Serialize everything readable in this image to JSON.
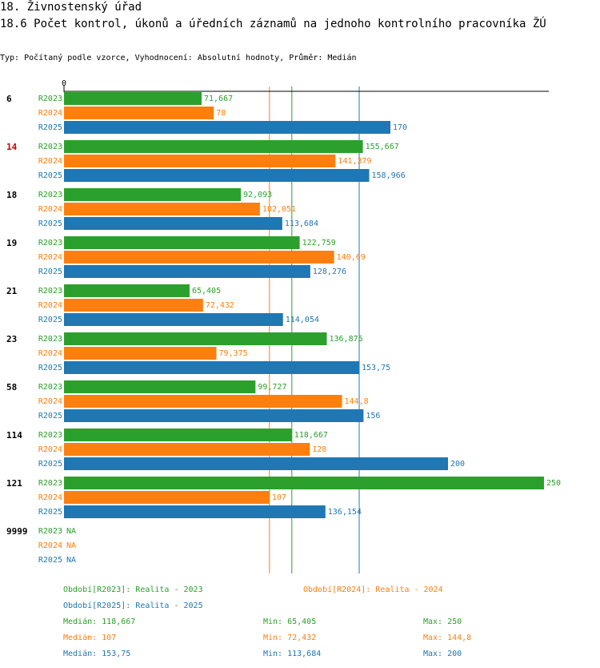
{
  "header": {
    "title": "18. Živnostenský úřad",
    "subtitle": "18.6 Počet kontrol, úkonů a úředních záznamů na jednoho kontrolního pracovníka ŽÚ",
    "meta": "Typ: Počítaný podle vzorce, Vyhodnocení: Absolutní hodnoty, Průměr: Medián"
  },
  "colors": {
    "R2023": "#2ca02c",
    "R2024": "#ff7f0e",
    "R2025": "#1f77b4",
    "highlight": "#cc0000"
  },
  "chart_data": {
    "type": "bar",
    "orientation": "horizontal",
    "axis_zero_label": "0",
    "xlim": [
      0,
      250
    ],
    "categories": [
      "6",
      "14",
      "18",
      "19",
      "21",
      "23",
      "58",
      "114",
      "121",
      "9999"
    ],
    "highlighted_category": "14",
    "series": [
      {
        "name": "R2023",
        "values": [
          71.667,
          155.667,
          92.093,
          122.759,
          65.405,
          136.875,
          99.727,
          118.667,
          250,
          null
        ],
        "labels": [
          "71,667",
          "155,667",
          "92,093",
          "122,759",
          "65,405",
          "136,875",
          "99,727",
          "118,667",
          "250",
          "NA"
        ]
      },
      {
        "name": "R2024",
        "values": [
          78,
          141.379,
          102.051,
          140.69,
          72.432,
          79.375,
          144.8,
          128,
          107,
          null
        ],
        "labels": [
          "78",
          "141,379",
          "102,051",
          "140,69",
          "72,432",
          "79,375",
          "144,8",
          "128",
          "107",
          "NA"
        ]
      },
      {
        "name": "R2025",
        "values": [
          170,
          158.966,
          113.684,
          128.276,
          114.054,
          153.75,
          156,
          200,
          136.154,
          null
        ],
        "labels": [
          "170",
          "158,966",
          "113,684",
          "128,276",
          "114,054",
          "153,75",
          "156",
          "200",
          "136,154",
          "NA"
        ]
      }
    ],
    "reference_lines": [
      {
        "series": "R2023",
        "statistic": "median",
        "value": 118.667
      },
      {
        "series": "R2024",
        "statistic": "median",
        "value": 107
      },
      {
        "series": "R2025",
        "statistic": "median",
        "value": 153.75
      }
    ]
  },
  "legend": {
    "periods": [
      {
        "series": "R2023",
        "text": "Období[R2023]: Realita - 2023"
      },
      {
        "series": "R2024",
        "text": "Období[R2024]: Realita - 2024"
      },
      {
        "series": "R2025",
        "text": "Období[R2025]: Realita - 2025"
      }
    ],
    "stats": [
      {
        "series": "R2023",
        "median": "Medián: 118,667",
        "min": "Min: 65,405",
        "max": "Max: 250"
      },
      {
        "series": "R2024",
        "median": "Medián: 107",
        "min": "Min: 72,432",
        "max": "Max: 144,8"
      },
      {
        "series": "R2025",
        "median": "Medián: 153,75",
        "min": "Min: 113,684",
        "max": "Max: 200"
      }
    ]
  }
}
